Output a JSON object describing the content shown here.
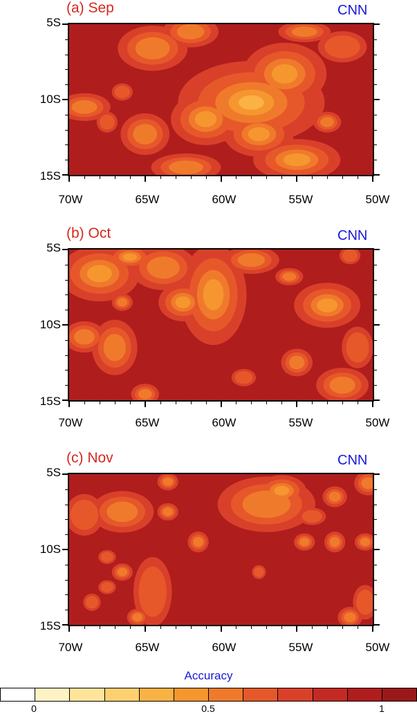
{
  "panels": [
    {
      "title": "(a) Sep",
      "model": "CNN",
      "blobs": [
        {
          "lon": -58.0,
          "lat": -10.2,
          "rx": 4.2,
          "ry": 2.4,
          "level": 0.5
        },
        {
          "lon": -55.8,
          "lat": -8.3,
          "rx": 2.4,
          "ry": 1.8,
          "level": 0.55
        },
        {
          "lon": -61.0,
          "lat": -11.3,
          "rx": 2.0,
          "ry": 1.5,
          "level": 0.6
        },
        {
          "lon": -57.5,
          "lat": -12.3,
          "rx": 2.0,
          "ry": 1.3,
          "level": 0.55
        },
        {
          "lon": -64.5,
          "lat": -6.6,
          "rx": 2.0,
          "ry": 1.3,
          "level": 0.65
        },
        {
          "lon": -62.0,
          "lat": -5.5,
          "rx": 1.6,
          "ry": 0.9,
          "level": 0.7
        },
        {
          "lon": -55.0,
          "lat": -14.0,
          "rx": 2.5,
          "ry": 1.2,
          "level": 0.6
        },
        {
          "lon": -65.0,
          "lat": -12.3,
          "rx": 1.4,
          "ry": 1.2,
          "level": 0.65
        },
        {
          "lon": -69.0,
          "lat": -10.5,
          "rx": 1.5,
          "ry": 0.8,
          "level": 0.7
        },
        {
          "lon": -54.5,
          "lat": -5.5,
          "rx": 1.5,
          "ry": 0.6,
          "level": 0.7
        },
        {
          "lon": -52.0,
          "lat": -6.5,
          "rx": 1.4,
          "ry": 0.9,
          "level": 0.75
        },
        {
          "lon": -62.3,
          "lat": -14.5,
          "rx": 2.0,
          "ry": 0.8,
          "level": 0.7
        },
        {
          "lon": -66.5,
          "lat": -9.5,
          "rx": 0.6,
          "ry": 0.5,
          "level": 0.75
        },
        {
          "lon": -67.5,
          "lat": -11.5,
          "rx": 0.6,
          "ry": 0.6,
          "level": 0.75
        },
        {
          "lon": -53.0,
          "lat": -11.5,
          "rx": 0.8,
          "ry": 0.6,
          "level": 0.7
        }
      ]
    },
    {
      "title": "(b) Oct",
      "model": "CNN",
      "blobs": [
        {
          "lon": -60.5,
          "lat": -8.0,
          "rx": 1.9,
          "ry": 2.9,
          "level": 0.55
        },
        {
          "lon": -62.5,
          "lat": -8.5,
          "rx": 1.4,
          "ry": 1.1,
          "level": 0.6
        },
        {
          "lon": -63.8,
          "lat": -6.2,
          "rx": 1.9,
          "ry": 1.3,
          "level": 0.65
        },
        {
          "lon": -68.0,
          "lat": -6.6,
          "rx": 2.3,
          "ry": 1.6,
          "level": 0.6
        },
        {
          "lon": -66.0,
          "lat": -5.5,
          "rx": 1.3,
          "ry": 0.7,
          "level": 0.6
        },
        {
          "lon": -58.0,
          "lat": -5.7,
          "rx": 1.6,
          "ry": 0.8,
          "level": 0.7
        },
        {
          "lon": -53.0,
          "lat": -8.7,
          "rx": 1.9,
          "ry": 1.3,
          "level": 0.6
        },
        {
          "lon": -67.0,
          "lat": -11.5,
          "rx": 1.3,
          "ry": 1.6,
          "level": 0.65
        },
        {
          "lon": -69.0,
          "lat": -10.8,
          "rx": 1.2,
          "ry": 0.9,
          "level": 0.7
        },
        {
          "lon": -52.0,
          "lat": -14.0,
          "rx": 1.5,
          "ry": 1.0,
          "level": 0.7
        },
        {
          "lon": -55.0,
          "lat": -12.5,
          "rx": 0.9,
          "ry": 0.8,
          "level": 0.7
        },
        {
          "lon": -65.0,
          "lat": -14.6,
          "rx": 0.8,
          "ry": 0.6,
          "level": 0.7
        },
        {
          "lon": -51.0,
          "lat": -11.5,
          "rx": 0.9,
          "ry": 1.2,
          "level": 0.75
        },
        {
          "lon": -66.5,
          "lat": -8.5,
          "rx": 0.6,
          "ry": 0.5,
          "level": 0.7
        },
        {
          "lon": -58.5,
          "lat": -13.5,
          "rx": 0.7,
          "ry": 0.5,
          "level": 0.75
        },
        {
          "lon": -55.5,
          "lat": -6.8,
          "rx": 0.8,
          "ry": 0.5,
          "level": 0.7
        },
        {
          "lon": -51.5,
          "lat": -5.4,
          "rx": 0.6,
          "ry": 0.5,
          "level": 0.75
        }
      ]
    },
    {
      "title": "(c) Nov",
      "model": "CNN",
      "blobs": [
        {
          "lon": -57.0,
          "lat": -7.0,
          "rx": 2.8,
          "ry": 1.6,
          "level": 0.65
        },
        {
          "lon": -56.0,
          "lat": -6.1,
          "rx": 1.4,
          "ry": 0.9,
          "level": 0.6
        },
        {
          "lon": -66.5,
          "lat": -7.5,
          "rx": 1.8,
          "ry": 1.2,
          "level": 0.65
        },
        {
          "lon": -69.0,
          "lat": -7.7,
          "rx": 1.1,
          "ry": 1.2,
          "level": 0.75
        },
        {
          "lon": -64.5,
          "lat": -12.8,
          "rx": 1.1,
          "ry": 2.0,
          "level": 0.75
        },
        {
          "lon": -63.5,
          "lat": -5.5,
          "rx": 0.6,
          "ry": 0.5,
          "level": 0.7
        },
        {
          "lon": -63.5,
          "lat": -7.5,
          "rx": 0.6,
          "ry": 0.5,
          "level": 0.7
        },
        {
          "lon": -61.5,
          "lat": -9.5,
          "rx": 0.6,
          "ry": 0.6,
          "level": 0.7
        },
        {
          "lon": -52.5,
          "lat": -6.5,
          "rx": 0.7,
          "ry": 0.6,
          "level": 0.7
        },
        {
          "lon": -50.3,
          "lat": -5.6,
          "rx": 0.8,
          "ry": 0.7,
          "level": 0.65
        },
        {
          "lon": -52.5,
          "lat": -9.5,
          "rx": 0.6,
          "ry": 0.6,
          "level": 0.7
        },
        {
          "lon": -54.5,
          "lat": -9.5,
          "rx": 0.6,
          "ry": 0.5,
          "level": 0.7
        },
        {
          "lon": -50.5,
          "lat": -9.5,
          "rx": 0.6,
          "ry": 0.5,
          "level": 0.7
        },
        {
          "lon": -50.5,
          "lat": -13.5,
          "rx": 0.7,
          "ry": 1.0,
          "level": 0.75
        },
        {
          "lon": -51.5,
          "lat": -14.5,
          "rx": 0.7,
          "ry": 0.6,
          "level": 0.7
        },
        {
          "lon": -66.5,
          "lat": -11.5,
          "rx": 0.6,
          "ry": 0.5,
          "level": 0.7
        },
        {
          "lon": -65.5,
          "lat": -14.5,
          "rx": 0.6,
          "ry": 0.5,
          "level": 0.7
        },
        {
          "lon": -68.5,
          "lat": -13.5,
          "rx": 0.5,
          "ry": 0.5,
          "level": 0.75
        },
        {
          "lon": -67.5,
          "lat": -10.5,
          "rx": 0.5,
          "ry": 0.4,
          "level": 0.8
        },
        {
          "lon": -67.5,
          "lat": -12.5,
          "rx": 0.5,
          "ry": 0.4,
          "level": 0.8
        },
        {
          "lon": -57.5,
          "lat": -11.5,
          "rx": 0.4,
          "ry": 0.4,
          "level": 0.8
        },
        {
          "lon": -54.0,
          "lat": -7.8,
          "rx": 0.8,
          "ry": 0.5,
          "level": 0.75
        }
      ]
    }
  ],
  "axes": {
    "x_ticks": [
      "70W",
      "65W",
      "60W",
      "55W",
      "50W"
    ],
    "x_values": [
      -70,
      -65,
      -60,
      -55,
      -50
    ],
    "y_ticks": [
      "5S",
      "10S",
      "15S"
    ],
    "y_values": [
      -5,
      -10,
      -15
    ],
    "lon_range": [
      -70,
      -50
    ],
    "lat_range": [
      -15,
      -5
    ]
  },
  "colorbar": {
    "title": "Accuracy",
    "labels": [
      "0",
      "0.5",
      "1"
    ],
    "label_values": [
      0,
      0.5,
      1
    ],
    "range": [
      0,
      1
    ],
    "colors": [
      "#ffffff",
      "#fff3c4",
      "#ffe49a",
      "#ffd070",
      "#fbb245",
      "#f6962f",
      "#f07a2b",
      "#e6582a",
      "#d9402a",
      "#c42a24",
      "#b01d1d",
      "#9a1818"
    ]
  }
}
